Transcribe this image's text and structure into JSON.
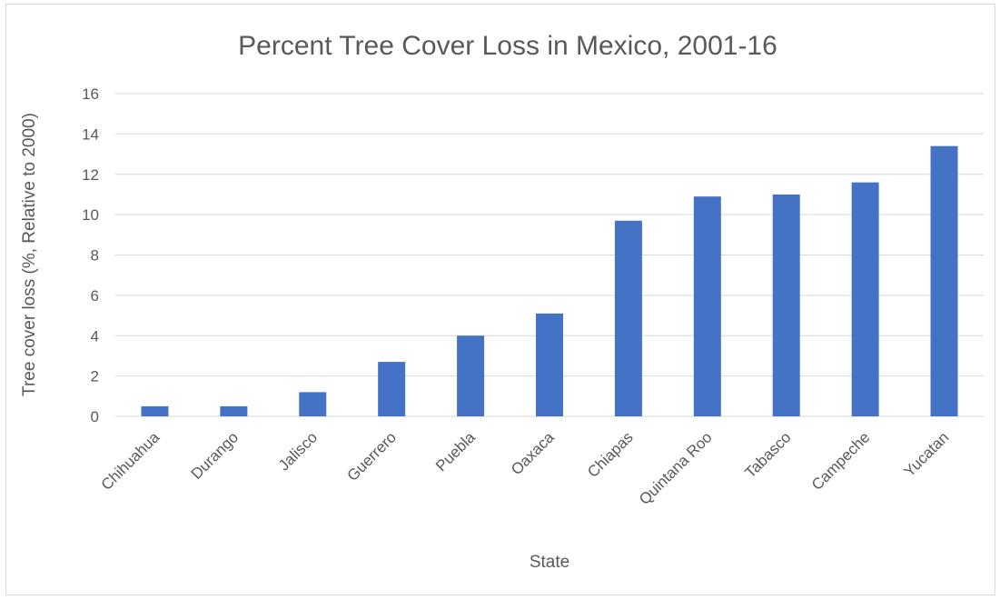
{
  "chart_data": {
    "type": "bar",
    "title": "Percent Tree Cover Loss in Mexico, 2001-16",
    "xlabel": "State",
    "ylabel": "Tree cover loss (%, Relative to 2000)",
    "categories": [
      "Chihuahua",
      "Durango",
      "Jalisco",
      "Guerrero",
      "Puebla",
      "Oaxaca",
      "Chiapas",
      "Quintana Roo",
      "Tabasco",
      "Campeche",
      "Yucatan"
    ],
    "values": [
      0.5,
      0.5,
      1.2,
      2.7,
      4.0,
      5.1,
      9.7,
      10.9,
      11.0,
      11.6,
      13.4
    ],
    "ylim": [
      0,
      16
    ],
    "yticks": [
      "0",
      "2",
      "4",
      "6",
      "8",
      "10",
      "12",
      "14",
      "16"
    ],
    "grid": true,
    "legend": "none",
    "colors": {
      "bar": "#4472c4",
      "grid": "#d9d9d9",
      "text": "#595959"
    }
  }
}
